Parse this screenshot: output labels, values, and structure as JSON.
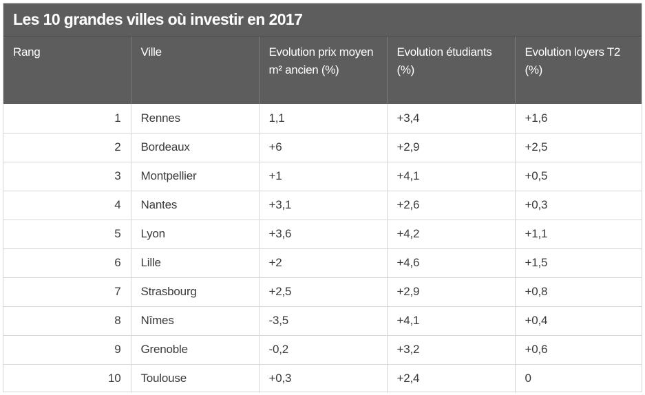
{
  "title": "Les 10 grandes villes où investir en 2017",
  "columns": [
    "Rang",
    "Ville",
    "Evolution prix moyen m² ancien (%)",
    "Evolution étudiants (%)",
    "Evolution loyers T2 (%)"
  ],
  "rows": [
    {
      "rang": "1",
      "ville": "Rennes",
      "prix": "1,1",
      "etudiants": "+3,4",
      "loyers": "+1,6"
    },
    {
      "rang": "2",
      "ville": "Bordeaux",
      "prix": "+6",
      "etudiants": "+2,9",
      "loyers": "+2,5"
    },
    {
      "rang": "3",
      "ville": "Montpellier",
      "prix": "+1",
      "etudiants": "+4,1",
      "loyers": "+0,5"
    },
    {
      "rang": "4",
      "ville": "Nantes",
      "prix": "+3,1",
      "etudiants": "+2,6",
      "loyers": "+0,3"
    },
    {
      "rang": "5",
      "ville": "Lyon",
      "prix": "+3,6",
      "etudiants": "+4,2",
      "loyers": "+1,1"
    },
    {
      "rang": "6",
      "ville": "Lille",
      "prix": "+2",
      "etudiants": "+4,6",
      "loyers": "+1,5"
    },
    {
      "rang": "7",
      "ville": "Strasbourg",
      "prix": "+2,5",
      "etudiants": "+2,9",
      "loyers": "+0,8"
    },
    {
      "rang": "8",
      "ville": "Nîmes",
      "prix": "-3,5",
      "etudiants": "+4,1",
      "loyers": "+0,4"
    },
    {
      "rang": "9",
      "ville": "Grenoble",
      "prix": "-0,2",
      "etudiants": "+3,2",
      "loyers": "+0,6"
    },
    {
      "rang": "10",
      "ville": "Toulouse",
      "prix": "+0,3",
      "etudiants": "+2,4",
      "loyers": "0"
    }
  ],
  "colors": {
    "header_bg": "#5d5d5d",
    "header_text": "#ffffff",
    "cell_text": "#3a3a3a",
    "grid_line": "#d6d6d6"
  }
}
